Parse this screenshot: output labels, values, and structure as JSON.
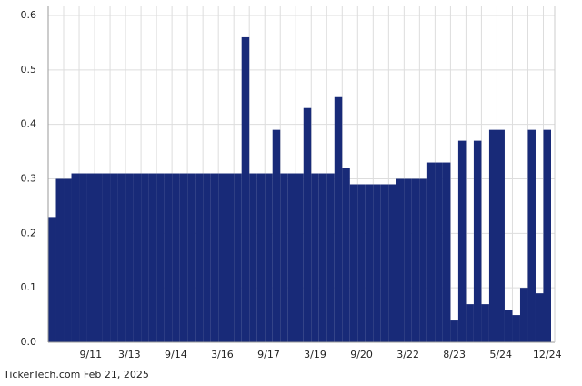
{
  "chart_data": {
    "type": "bar",
    "categories": [
      null,
      null,
      null,
      null,
      null,
      "9/11",
      null,
      null,
      null,
      null,
      "3/13",
      null,
      null,
      null,
      null,
      null,
      "9/14",
      null,
      null,
      null,
      null,
      null,
      "3/16",
      null,
      null,
      null,
      null,
      null,
      "9/17",
      null,
      null,
      null,
      null,
      null,
      "3/19",
      null,
      null,
      null,
      null,
      null,
      "9/20",
      null,
      null,
      null,
      null,
      null,
      "3/22",
      null,
      null,
      null,
      null,
      null,
      "8/23",
      null,
      null,
      null,
      null,
      null,
      "5/24",
      null,
      null,
      null,
      null,
      null,
      "12/24"
    ],
    "values": [
      0.23,
      0.3,
      0.3,
      0.31,
      0.31,
      0.31,
      0.31,
      0.31,
      0.31,
      0.31,
      0.31,
      0.31,
      0.31,
      0.31,
      0.31,
      0.31,
      0.31,
      0.31,
      0.31,
      0.31,
      0.31,
      0.31,
      0.31,
      0.31,
      0.31,
      0.56,
      0.31,
      0.31,
      0.31,
      0.39,
      0.31,
      0.31,
      0.31,
      0.43,
      0.31,
      0.31,
      0.31,
      0.45,
      0.32,
      0.29,
      0.29,
      0.29,
      0.29,
      0.29,
      0.29,
      0.3,
      0.3,
      0.3,
      0.3,
      0.33,
      0.33,
      0.33,
      0.04,
      0.37,
      0.07,
      0.37,
      0.07,
      0.39,
      0.39,
      0.06,
      0.05,
      0.1,
      0.39,
      0.09,
      0.39
    ],
    "color": "#182a78",
    "ylim": [
      0,
      0.6
    ],
    "yticks": [
      {
        "value": 0,
        "label": "0.0"
      },
      0.1,
      0.2,
      0.3,
      0.4,
      0.5,
      0.6
    ],
    "grid": true,
    "footer": "TickerTech.com  Feb 21, 2025"
  }
}
